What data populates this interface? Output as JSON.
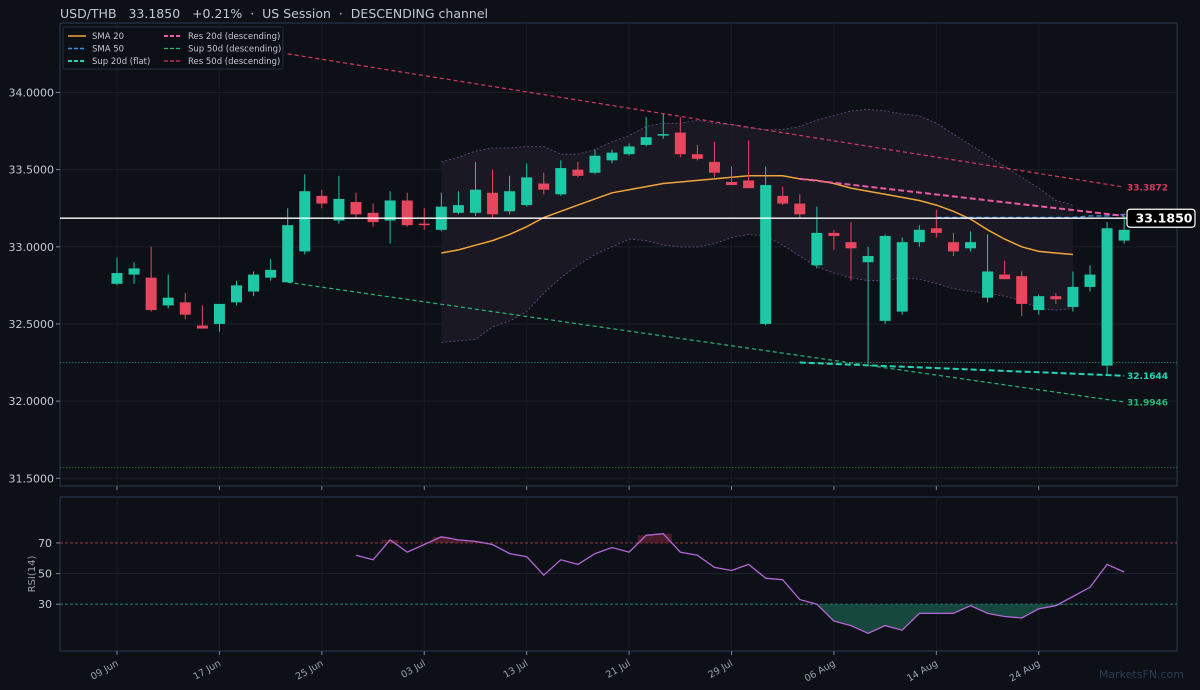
{
  "header": {
    "symbol": "USD/THB",
    "price": "33.1850",
    "change": "+0.21%",
    "sep": "·",
    "session": "US Session",
    "channel": "DESCENDING channel"
  },
  "watermark": "MarketsFN.com",
  "colors": {
    "background": "#0d1017",
    "panel_border": "#2a3a52",
    "up": "#1ec8a5",
    "down": "#e8455f",
    "sma20": "#f0a53c",
    "sma50": "#3b8fe0",
    "sup20": "#25d4b5",
    "sup50": "#27b77a",
    "res20": "#ec5aa4",
    "res50": "#d63a63",
    "rsi": "#b466d6",
    "price_line": "#ffffff",
    "band_fill": "#1c1a26",
    "band_line": "#6b4f8a"
  },
  "chart_data": [
    {
      "type": "candlestick",
      "ylim": [
        31.45,
        34.45
      ],
      "yticks": [
        "34.0000",
        "33.5000",
        "33.0000",
        "32.5000",
        "32.0000",
        "31.5000"
      ],
      "ytick_values": [
        34.0,
        33.5,
        33.0,
        32.5,
        32.0,
        31.5
      ],
      "xtick_labels": [
        "09 Jun",
        "17 Jun",
        "25 Jun",
        "03 Jul",
        "13 Jul",
        "21 Jul",
        "29 Jul",
        "06 Aug",
        "14 Aug",
        "24 Aug"
      ],
      "xtick_index": [
        0,
        6,
        12,
        18,
        24,
        30,
        36,
        42,
        48,
        54
      ],
      "ohlc": [
        [
          32.76,
          32.93,
          32.75,
          32.83
        ],
        [
          32.82,
          32.9,
          32.76,
          32.86
        ],
        [
          32.8,
          33.0,
          32.58,
          32.59
        ],
        [
          32.62,
          32.82,
          32.6,
          32.67
        ],
        [
          32.64,
          32.7,
          32.53,
          32.56
        ],
        [
          32.49,
          32.62,
          32.47,
          32.47
        ],
        [
          32.5,
          32.62,
          32.45,
          32.63
        ],
        [
          32.64,
          32.78,
          32.62,
          32.75
        ],
        [
          32.71,
          32.84,
          32.68,
          32.82
        ],
        [
          32.8,
          32.92,
          32.78,
          32.85
        ],
        [
          32.77,
          33.25,
          32.77,
          33.14
        ],
        [
          32.97,
          33.47,
          32.95,
          33.36
        ],
        [
          33.33,
          33.37,
          33.25,
          33.28
        ],
        [
          33.17,
          33.46,
          33.15,
          33.31
        ],
        [
          33.29,
          33.35,
          33.18,
          33.21
        ],
        [
          33.22,
          33.28,
          33.13,
          33.16
        ],
        [
          33.17,
          33.36,
          33.02,
          33.3
        ],
        [
          33.3,
          33.35,
          33.13,
          33.14
        ],
        [
          33.15,
          33.25,
          33.11,
          33.14
        ],
        [
          33.11,
          33.35,
          33.1,
          33.26
        ],
        [
          33.22,
          33.36,
          33.21,
          33.27
        ],
        [
          33.22,
          33.55,
          33.2,
          33.37
        ],
        [
          33.35,
          33.5,
          33.19,
          33.21
        ],
        [
          33.23,
          33.46,
          33.21,
          33.36
        ],
        [
          33.27,
          33.54,
          33.26,
          33.45
        ],
        [
          33.41,
          33.48,
          33.34,
          33.37
        ],
        [
          33.34,
          33.56,
          33.33,
          33.51
        ],
        [
          33.5,
          33.55,
          33.45,
          33.46
        ],
        [
          33.48,
          33.63,
          33.47,
          33.59
        ],
        [
          33.56,
          33.63,
          33.54,
          33.61
        ],
        [
          33.6,
          33.67,
          33.59,
          33.65
        ],
        [
          33.66,
          33.84,
          33.65,
          33.71
        ],
        [
          33.72,
          33.86,
          33.7,
          33.73
        ],
        [
          33.74,
          33.84,
          33.58,
          33.6
        ],
        [
          33.6,
          33.66,
          33.56,
          33.57
        ],
        [
          33.55,
          33.68,
          33.45,
          33.48
        ],
        [
          33.42,
          33.52,
          33.4,
          33.4
        ],
        [
          33.43,
          33.69,
          33.38,
          33.38
        ],
        [
          32.5,
          33.52,
          32.49,
          33.4
        ],
        [
          33.33,
          33.39,
          33.27,
          33.28
        ],
        [
          33.28,
          33.34,
          33.19,
          33.21
        ],
        [
          32.88,
          33.26,
          32.86,
          33.09
        ],
        [
          33.09,
          33.11,
          32.98,
          33.07
        ],
        [
          33.03,
          33.16,
          32.78,
          32.99
        ],
        [
          32.9,
          33.0,
          32.24,
          32.94
        ],
        [
          32.52,
          33.08,
          32.5,
          33.07
        ],
        [
          32.58,
          33.06,
          32.56,
          33.03
        ],
        [
          33.03,
          33.14,
          33.0,
          33.11
        ],
        [
          33.12,
          33.24,
          33.06,
          33.09
        ],
        [
          33.03,
          33.09,
          32.94,
          32.97
        ],
        [
          32.99,
          33.1,
          32.97,
          33.03
        ],
        [
          32.67,
          33.08,
          32.64,
          32.84
        ],
        [
          32.82,
          32.91,
          32.79,
          32.79
        ],
        [
          32.81,
          32.84,
          32.55,
          32.63
        ],
        [
          32.59,
          32.69,
          32.56,
          32.68
        ],
        [
          32.68,
          32.7,
          32.63,
          32.66
        ],
        [
          32.61,
          32.84,
          32.58,
          32.74
        ],
        [
          32.74,
          32.88,
          32.71,
          32.82
        ],
        [
          32.23,
          33.16,
          32.17,
          33.12
        ],
        [
          33.04,
          33.2,
          33.02,
          33.11
        ]
      ],
      "series": [
        {
          "name": "SMA 20",
          "style": "solid",
          "start": 19,
          "values": [
            32.96,
            32.98,
            33.01,
            33.04,
            33.08,
            33.13,
            33.19,
            33.23,
            33.27,
            33.31,
            33.35,
            33.37,
            33.39,
            33.41,
            33.42,
            33.43,
            33.44,
            33.45,
            33.46,
            33.46,
            33.46,
            33.44,
            33.43,
            33.41,
            33.38,
            33.36,
            33.34,
            33.32,
            33.3,
            33.27,
            33.23,
            33.18,
            33.11,
            33.05,
            33.0,
            32.97,
            32.96,
            32.95
          ]
        },
        {
          "name": "SMA 50",
          "style": "dashed",
          "start": 48,
          "values": [
            33.19,
            33.19,
            33.19,
            33.19,
            33.19,
            33.19,
            33.19,
            33.19,
            33.19,
            33.2,
            33.2,
            33.21,
            33.22
          ]
        },
        {
          "name": "Sup 20d (flat)",
          "style": "dashed",
          "from": [
            40,
            32.25
          ],
          "to": [
            59,
            32.1644
          ]
        },
        {
          "name": "Sup 50d (descending)",
          "style": "dashed",
          "from": [
            10,
            32.77
          ],
          "to": [
            59,
            31.9946
          ]
        },
        {
          "name": "Res 20d (descending)",
          "style": "dashed",
          "from": [
            40,
            33.44
          ],
          "to": [
            59,
            33.2
          ]
        },
        {
          "name": "Res 50d (descending)",
          "style": "dashed",
          "from": [
            10,
            34.25
          ],
          "to": [
            59,
            33.3872
          ]
        }
      ],
      "bands": {
        "start": 19,
        "upper": [
          33.55,
          33.58,
          33.62,
          33.64,
          33.64,
          33.65,
          33.65,
          33.6,
          33.6,
          33.63,
          33.68,
          33.72,
          33.78,
          33.8,
          33.8,
          33.82,
          33.8,
          33.79,
          33.77,
          33.76,
          33.76,
          33.78,
          33.82,
          33.85,
          33.88,
          33.89,
          33.88,
          33.86,
          33.85,
          33.8,
          33.73,
          33.66,
          33.59,
          33.52,
          33.45,
          33.38,
          33.3,
          33.27
        ],
        "lower": [
          32.38,
          32.39,
          32.4,
          32.48,
          32.52,
          32.58,
          32.7,
          32.8,
          32.88,
          32.95,
          33.0,
          33.05,
          33.04,
          33.01,
          33.0,
          33.0,
          33.02,
          33.06,
          33.08,
          33.07,
          33.01,
          32.94,
          32.87,
          32.83,
          32.8,
          32.78,
          32.78,
          32.8,
          32.79,
          32.76,
          32.73,
          32.71,
          32.7,
          32.68,
          32.65,
          32.6,
          32.59,
          32.6
        ]
      },
      "current_price": 33.185,
      "current_price_label": "33.1850",
      "hlines": [
        {
          "value": 32.25,
          "color": "#1f7f6a"
        },
        {
          "value": 31.57,
          "color": "#1e6b3e"
        }
      ],
      "end_labels": [
        {
          "text": "33.3872",
          "series": "Res 50d (descending)"
        },
        {
          "text": "32.1644",
          "series": "Sup 20d (flat)"
        },
        {
          "text": "31.9946",
          "series": "Sup 50d (descending)"
        }
      ],
      "legend": {
        "placement": "top-left",
        "col1": [
          "SMA 20",
          "SMA 50",
          "Sup 20d (flat)"
        ],
        "col2": [
          "Res 20d (descending)",
          "Sup 50d (descending)",
          "Res 50d (descending)"
        ]
      }
    },
    {
      "type": "line",
      "ylabel": "RSI(14)",
      "ylim": [
        0,
        100
      ],
      "yticks": [
        "70",
        "50",
        "30"
      ],
      "ytick_values": [
        70,
        50,
        30
      ],
      "overbought": 70,
      "oversold": 30,
      "series": [
        {
          "name": "RSI(14)",
          "start": 14,
          "values": [
            62,
            59,
            72,
            64,
            69,
            74,
            72,
            71,
            69,
            63,
            61,
            49,
            59,
            56,
            63,
            67,
            64,
            75,
            76,
            64,
            62,
            54,
            52,
            56,
            47,
            46,
            33,
            30,
            19,
            16,
            11,
            16,
            13,
            24,
            24,
            24,
            29,
            24,
            22,
            21,
            27,
            29,
            35,
            41,
            56,
            51
          ]
        }
      ]
    }
  ]
}
